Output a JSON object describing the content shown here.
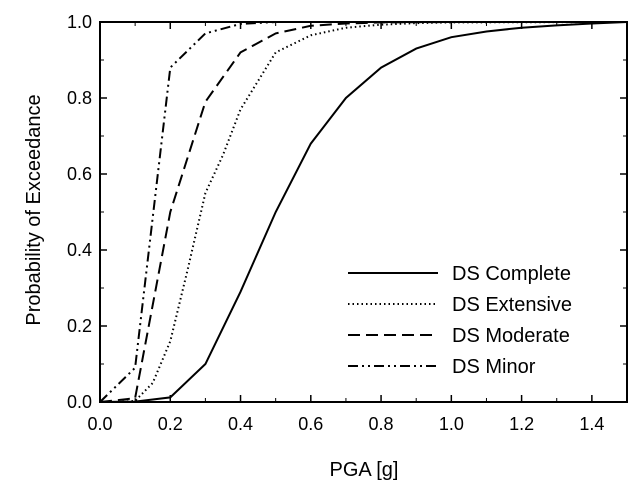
{
  "chart_data": {
    "type": "line",
    "title": "",
    "xlabel": "PGA [g]",
    "ylabel": "Probability of Exceedance",
    "xlim": [
      0,
      1.5
    ],
    "ylim": [
      0,
      1.0
    ],
    "grid": false,
    "legend_position": "bottom-right",
    "x_ticks": [
      "0.0",
      "0.2",
      "0.4",
      "0.6",
      "0.8",
      "1.0",
      "1.2",
      "1.4"
    ],
    "y_ticks": [
      "0.0",
      "0.2",
      "0.4",
      "0.6",
      "0.8",
      "1.0"
    ],
    "series": [
      {
        "name": "DS Complete",
        "line_style": "solid",
        "x": [
          0,
          0.1,
          0.2,
          0.3,
          0.4,
          0.5,
          0.6,
          0.7,
          0.8,
          0.9,
          1.0,
          1.1,
          1.2,
          1.3,
          1.4,
          1.5
        ],
        "y": [
          0,
          0.001,
          0.012,
          0.1,
          0.29,
          0.5,
          0.68,
          0.8,
          0.88,
          0.93,
          0.96,
          0.975,
          0.985,
          0.991,
          0.996,
          1.0
        ]
      },
      {
        "name": "DS Extensive",
        "line_style": "dotted",
        "x": [
          0,
          0.05,
          0.1,
          0.15,
          0.2,
          0.25,
          0.3,
          0.35,
          0.4,
          0.5,
          0.6,
          0.7,
          0.8,
          0.9,
          1.0,
          1.5
        ],
        "y": [
          0,
          0.0,
          0.003,
          0.05,
          0.16,
          0.35,
          0.55,
          0.65,
          0.77,
          0.92,
          0.965,
          0.985,
          0.993,
          0.997,
          0.999,
          1.0
        ]
      },
      {
        "name": "DS Moderate",
        "line_style": "dashed",
        "x": [
          0,
          0.1,
          0.2,
          0.3,
          0.4,
          0.5,
          0.6,
          0.7,
          0.8,
          1.0,
          1.5
        ],
        "y": [
          0,
          0.01,
          0.5,
          0.79,
          0.92,
          0.97,
          0.99,
          0.996,
          0.999,
          1.0,
          1.0
        ]
      },
      {
        "name": "DS Minor",
        "line_style": "dash-dot-dot",
        "x": [
          0,
          0.1,
          0.2,
          0.3,
          0.4,
          0.5,
          0.6,
          0.8,
          1.0,
          1.5
        ],
        "y": [
          0,
          0.09,
          0.88,
          0.97,
          0.995,
          1.0,
          1.0,
          1.0,
          1.0,
          1.0
        ]
      }
    ]
  }
}
